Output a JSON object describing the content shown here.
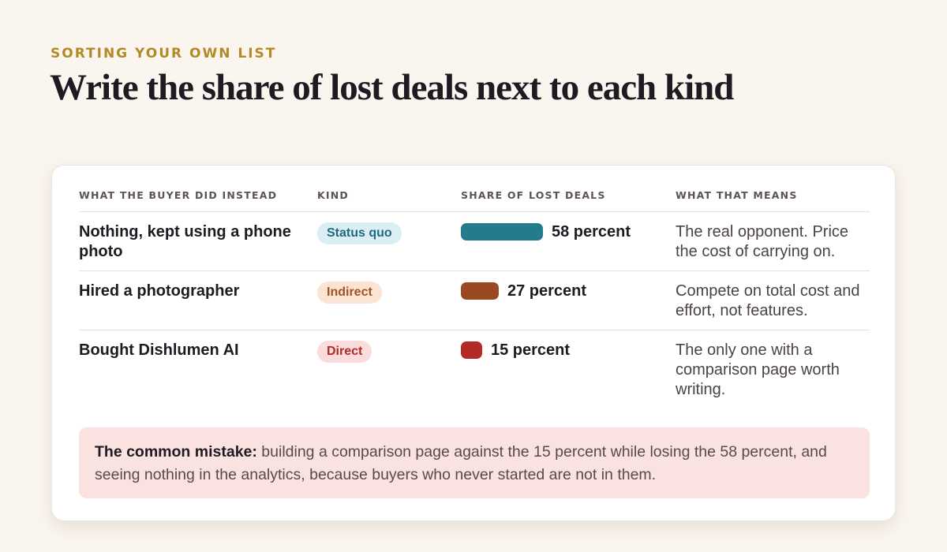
{
  "eyebrow": "SORTING YOUR OWN LIST",
  "title": "Write the share of lost deals next to each kind",
  "table": {
    "headers": {
      "what": "WHAT THE BUYER DID INSTEAD",
      "kind": "KIND",
      "share": "SHARE OF LOST DEALS",
      "means": "WHAT THAT MEANS"
    },
    "rows": [
      {
        "what": "Nothing, kept using a phone photo",
        "kind": "Status quo",
        "kind_style": "statusquo",
        "share_value": 58,
        "share_label": "58 percent",
        "bar_color": "#237b8c",
        "means": "The real opponent. Price the cost of carrying on."
      },
      {
        "what": "Hired a photographer",
        "kind": "Indirect",
        "kind_style": "indirect",
        "share_value": 27,
        "share_label": "27 percent",
        "bar_color": "#9a4a22",
        "means": "Compete on total cost and effort, not features."
      },
      {
        "what": "Bought Dishlumen AI",
        "kind": "Direct",
        "kind_style": "direct",
        "share_value": 15,
        "share_label": "15 percent",
        "bar_color": "#b42a26",
        "means": "The only one with a comparison page worth writing."
      }
    ]
  },
  "callout": {
    "lead": "The common mistake:",
    "body": " building a comparison page against the 15 percent while losing the 58 percent, and seeing nothing in the analytics, because buyers who never started are not in them."
  },
  "colors": {
    "accent": "#b38a28",
    "background": "#faf5ee",
    "callout_background": "#fae2e1"
  }
}
